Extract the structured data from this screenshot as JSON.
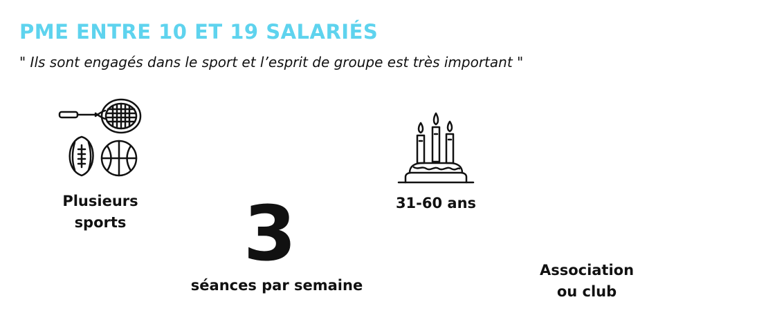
{
  "header": {
    "title": "PME ENTRE 10 ET 19 SALARIÉS",
    "quote": "\" Ils sont engagés dans le sport et l’esprit de groupe est très important \""
  },
  "stats": {
    "sports": {
      "line1": "Plusieurs",
      "line2": "sports",
      "icon": "sports-equipment-icon"
    },
    "sessions": {
      "value": "3",
      "label": "séances par semaine"
    },
    "age": {
      "label": "31-60 ans",
      "icon": "birthday-cake-icon"
    },
    "club": {
      "line1": "Association",
      "line2": "ou club"
    }
  },
  "colors": {
    "title": "#5ed3ee",
    "text": "#111111",
    "background": "#ffffff"
  }
}
